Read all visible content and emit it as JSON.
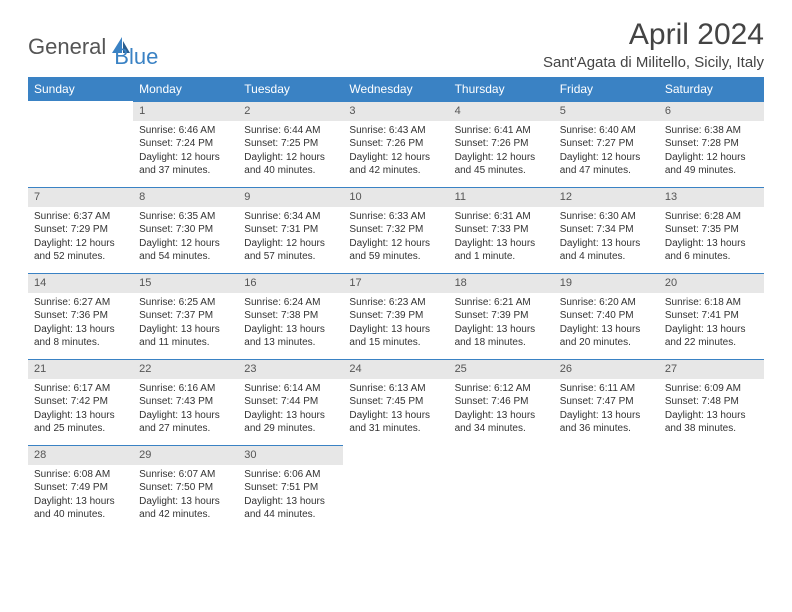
{
  "brand": {
    "text1": "General",
    "text2": "Blue"
  },
  "title": "April 2024",
  "location": "Sant'Agata di Militello, Sicily, Italy",
  "colors": {
    "accent": "#3a82c4",
    "header_bg": "#3a82c4",
    "header_text": "#ffffff",
    "daynum_bg": "#e7e7e7",
    "daynum_text": "#555555",
    "body_text": "#333333",
    "page_bg": "#ffffff"
  },
  "typography": {
    "title_fontsize": 30,
    "location_fontsize": 15,
    "th_fontsize": 12,
    "cell_fontsize": 10
  },
  "days_of_week": [
    "Sunday",
    "Monday",
    "Tuesday",
    "Wednesday",
    "Thursday",
    "Friday",
    "Saturday"
  ],
  "weeks": [
    [
      null,
      {
        "n": "1",
        "sr": "Sunrise: 6:46 AM",
        "ss": "Sunset: 7:24 PM",
        "d1": "Daylight: 12 hours",
        "d2": "and 37 minutes."
      },
      {
        "n": "2",
        "sr": "Sunrise: 6:44 AM",
        "ss": "Sunset: 7:25 PM",
        "d1": "Daylight: 12 hours",
        "d2": "and 40 minutes."
      },
      {
        "n": "3",
        "sr": "Sunrise: 6:43 AM",
        "ss": "Sunset: 7:26 PM",
        "d1": "Daylight: 12 hours",
        "d2": "and 42 minutes."
      },
      {
        "n": "4",
        "sr": "Sunrise: 6:41 AM",
        "ss": "Sunset: 7:26 PM",
        "d1": "Daylight: 12 hours",
        "d2": "and 45 minutes."
      },
      {
        "n": "5",
        "sr": "Sunrise: 6:40 AM",
        "ss": "Sunset: 7:27 PM",
        "d1": "Daylight: 12 hours",
        "d2": "and 47 minutes."
      },
      {
        "n": "6",
        "sr": "Sunrise: 6:38 AM",
        "ss": "Sunset: 7:28 PM",
        "d1": "Daylight: 12 hours",
        "d2": "and 49 minutes."
      }
    ],
    [
      {
        "n": "7",
        "sr": "Sunrise: 6:37 AM",
        "ss": "Sunset: 7:29 PM",
        "d1": "Daylight: 12 hours",
        "d2": "and 52 minutes."
      },
      {
        "n": "8",
        "sr": "Sunrise: 6:35 AM",
        "ss": "Sunset: 7:30 PM",
        "d1": "Daylight: 12 hours",
        "d2": "and 54 minutes."
      },
      {
        "n": "9",
        "sr": "Sunrise: 6:34 AM",
        "ss": "Sunset: 7:31 PM",
        "d1": "Daylight: 12 hours",
        "d2": "and 57 minutes."
      },
      {
        "n": "10",
        "sr": "Sunrise: 6:33 AM",
        "ss": "Sunset: 7:32 PM",
        "d1": "Daylight: 12 hours",
        "d2": "and 59 minutes."
      },
      {
        "n": "11",
        "sr": "Sunrise: 6:31 AM",
        "ss": "Sunset: 7:33 PM",
        "d1": "Daylight: 13 hours",
        "d2": "and 1 minute."
      },
      {
        "n": "12",
        "sr": "Sunrise: 6:30 AM",
        "ss": "Sunset: 7:34 PM",
        "d1": "Daylight: 13 hours",
        "d2": "and 4 minutes."
      },
      {
        "n": "13",
        "sr": "Sunrise: 6:28 AM",
        "ss": "Sunset: 7:35 PM",
        "d1": "Daylight: 13 hours",
        "d2": "and 6 minutes."
      }
    ],
    [
      {
        "n": "14",
        "sr": "Sunrise: 6:27 AM",
        "ss": "Sunset: 7:36 PM",
        "d1": "Daylight: 13 hours",
        "d2": "and 8 minutes."
      },
      {
        "n": "15",
        "sr": "Sunrise: 6:25 AM",
        "ss": "Sunset: 7:37 PM",
        "d1": "Daylight: 13 hours",
        "d2": "and 11 minutes."
      },
      {
        "n": "16",
        "sr": "Sunrise: 6:24 AM",
        "ss": "Sunset: 7:38 PM",
        "d1": "Daylight: 13 hours",
        "d2": "and 13 minutes."
      },
      {
        "n": "17",
        "sr": "Sunrise: 6:23 AM",
        "ss": "Sunset: 7:39 PM",
        "d1": "Daylight: 13 hours",
        "d2": "and 15 minutes."
      },
      {
        "n": "18",
        "sr": "Sunrise: 6:21 AM",
        "ss": "Sunset: 7:39 PM",
        "d1": "Daylight: 13 hours",
        "d2": "and 18 minutes."
      },
      {
        "n": "19",
        "sr": "Sunrise: 6:20 AM",
        "ss": "Sunset: 7:40 PM",
        "d1": "Daylight: 13 hours",
        "d2": "and 20 minutes."
      },
      {
        "n": "20",
        "sr": "Sunrise: 6:18 AM",
        "ss": "Sunset: 7:41 PM",
        "d1": "Daylight: 13 hours",
        "d2": "and 22 minutes."
      }
    ],
    [
      {
        "n": "21",
        "sr": "Sunrise: 6:17 AM",
        "ss": "Sunset: 7:42 PM",
        "d1": "Daylight: 13 hours",
        "d2": "and 25 minutes."
      },
      {
        "n": "22",
        "sr": "Sunrise: 6:16 AM",
        "ss": "Sunset: 7:43 PM",
        "d1": "Daylight: 13 hours",
        "d2": "and 27 minutes."
      },
      {
        "n": "23",
        "sr": "Sunrise: 6:14 AM",
        "ss": "Sunset: 7:44 PM",
        "d1": "Daylight: 13 hours",
        "d2": "and 29 minutes."
      },
      {
        "n": "24",
        "sr": "Sunrise: 6:13 AM",
        "ss": "Sunset: 7:45 PM",
        "d1": "Daylight: 13 hours",
        "d2": "and 31 minutes."
      },
      {
        "n": "25",
        "sr": "Sunrise: 6:12 AM",
        "ss": "Sunset: 7:46 PM",
        "d1": "Daylight: 13 hours",
        "d2": "and 34 minutes."
      },
      {
        "n": "26",
        "sr": "Sunrise: 6:11 AM",
        "ss": "Sunset: 7:47 PM",
        "d1": "Daylight: 13 hours",
        "d2": "and 36 minutes."
      },
      {
        "n": "27",
        "sr": "Sunrise: 6:09 AM",
        "ss": "Sunset: 7:48 PM",
        "d1": "Daylight: 13 hours",
        "d2": "and 38 minutes."
      }
    ],
    [
      {
        "n": "28",
        "sr": "Sunrise: 6:08 AM",
        "ss": "Sunset: 7:49 PM",
        "d1": "Daylight: 13 hours",
        "d2": "and 40 minutes."
      },
      {
        "n": "29",
        "sr": "Sunrise: 6:07 AM",
        "ss": "Sunset: 7:50 PM",
        "d1": "Daylight: 13 hours",
        "d2": "and 42 minutes."
      },
      {
        "n": "30",
        "sr": "Sunrise: 6:06 AM",
        "ss": "Sunset: 7:51 PM",
        "d1": "Daylight: 13 hours",
        "d2": "and 44 minutes."
      },
      null,
      null,
      null,
      null
    ]
  ]
}
